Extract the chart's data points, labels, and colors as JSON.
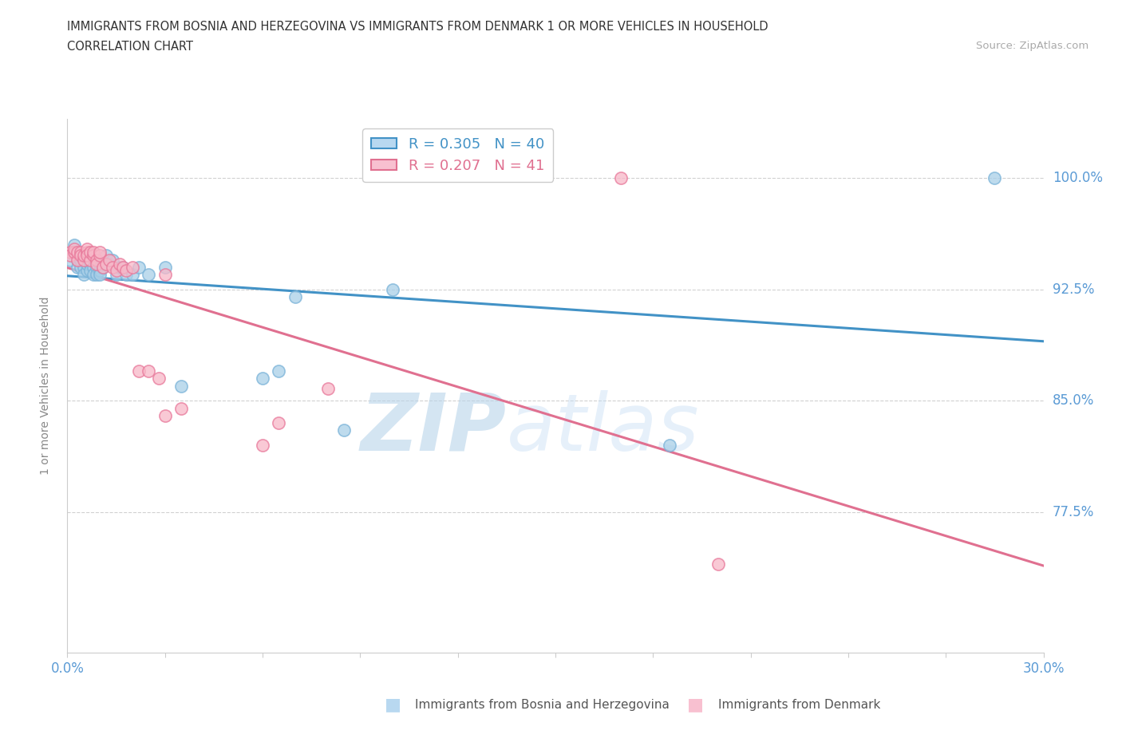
{
  "title_line1": "IMMIGRANTS FROM BOSNIA AND HERZEGOVINA VS IMMIGRANTS FROM DENMARK 1 OR MORE VEHICLES IN HOUSEHOLD",
  "title_line2": "CORRELATION CHART",
  "source_text": "Source: ZipAtlas.com",
  "ylabel": "1 or more Vehicles in Household",
  "xlim": [
    0.0,
    0.3
  ],
  "ylim": [
    0.68,
    1.04
  ],
  "ytick_values": [
    0.775,
    0.85,
    0.925,
    1.0
  ],
  "ytick_labels": [
    "77.5%",
    "85.0%",
    "92.5%",
    "100.0%"
  ],
  "series_bosnia": {
    "label": "Immigrants from Bosnia and Herzegovina",
    "color": "#a8cfe8",
    "edge_color": "#7ab3d8",
    "fill_alpha": 0.5,
    "R": 0.305,
    "N": 40,
    "x": [
      0.001,
      0.002,
      0.002,
      0.003,
      0.003,
      0.004,
      0.004,
      0.005,
      0.005,
      0.006,
      0.006,
      0.007,
      0.007,
      0.008,
      0.008,
      0.009,
      0.009,
      0.01,
      0.01,
      0.011,
      0.011,
      0.012,
      0.013,
      0.014,
      0.015,
      0.016,
      0.017,
      0.018,
      0.02,
      0.022,
      0.025,
      0.03,
      0.035,
      0.06,
      0.065,
      0.07,
      0.085,
      0.1,
      0.185,
      0.285
    ],
    "y": [
      0.945,
      0.955,
      0.95,
      0.945,
      0.94,
      0.94,
      0.945,
      0.94,
      0.935,
      0.938,
      0.942,
      0.942,
      0.938,
      0.94,
      0.935,
      0.94,
      0.935,
      0.938,
      0.935,
      0.942,
      0.94,
      0.948,
      0.942,
      0.945,
      0.935,
      0.94,
      0.94,
      0.935,
      0.935,
      0.94,
      0.935,
      0.94,
      0.86,
      0.865,
      0.87,
      0.92,
      0.83,
      0.925,
      0.82,
      1.0
    ]
  },
  "series_denmark": {
    "label": "Immigrants from Denmark",
    "color": "#f7b8c8",
    "edge_color": "#e8789a",
    "fill_alpha": 0.5,
    "R": 0.207,
    "N": 41,
    "x": [
      0.001,
      0.001,
      0.002,
      0.002,
      0.003,
      0.003,
      0.004,
      0.004,
      0.005,
      0.005,
      0.006,
      0.006,
      0.006,
      0.007,
      0.007,
      0.008,
      0.008,
      0.009,
      0.009,
      0.01,
      0.01,
      0.011,
      0.012,
      0.013,
      0.014,
      0.015,
      0.016,
      0.017,
      0.018,
      0.02,
      0.022,
      0.025,
      0.028,
      0.03,
      0.03,
      0.035,
      0.06,
      0.065,
      0.08,
      0.17,
      0.2
    ],
    "y": [
      0.95,
      0.948,
      0.95,
      0.952,
      0.945,
      0.95,
      0.95,
      0.948,
      0.945,
      0.948,
      0.95,
      0.952,
      0.948,
      0.945,
      0.95,
      0.948,
      0.95,
      0.945,
      0.942,
      0.948,
      0.95,
      0.94,
      0.942,
      0.945,
      0.94,
      0.938,
      0.942,
      0.94,
      0.938,
      0.94,
      0.87,
      0.87,
      0.865,
      0.84,
      0.935,
      0.845,
      0.82,
      0.835,
      0.858,
      1.0,
      0.74
    ]
  },
  "trend_bosnia_color": "#4292c6",
  "trend_denmark_color": "#e07090",
  "legend_bosnia_face": "#b8d8f0",
  "legend_denmark_face": "#f8c0d0",
  "watermark_zip": "ZIP",
  "watermark_atlas": "atlas",
  "watermark_color": "#c8dff0",
  "background_color": "#ffffff",
  "grid_color": "#cccccc",
  "tick_color": "#5b9bd5"
}
